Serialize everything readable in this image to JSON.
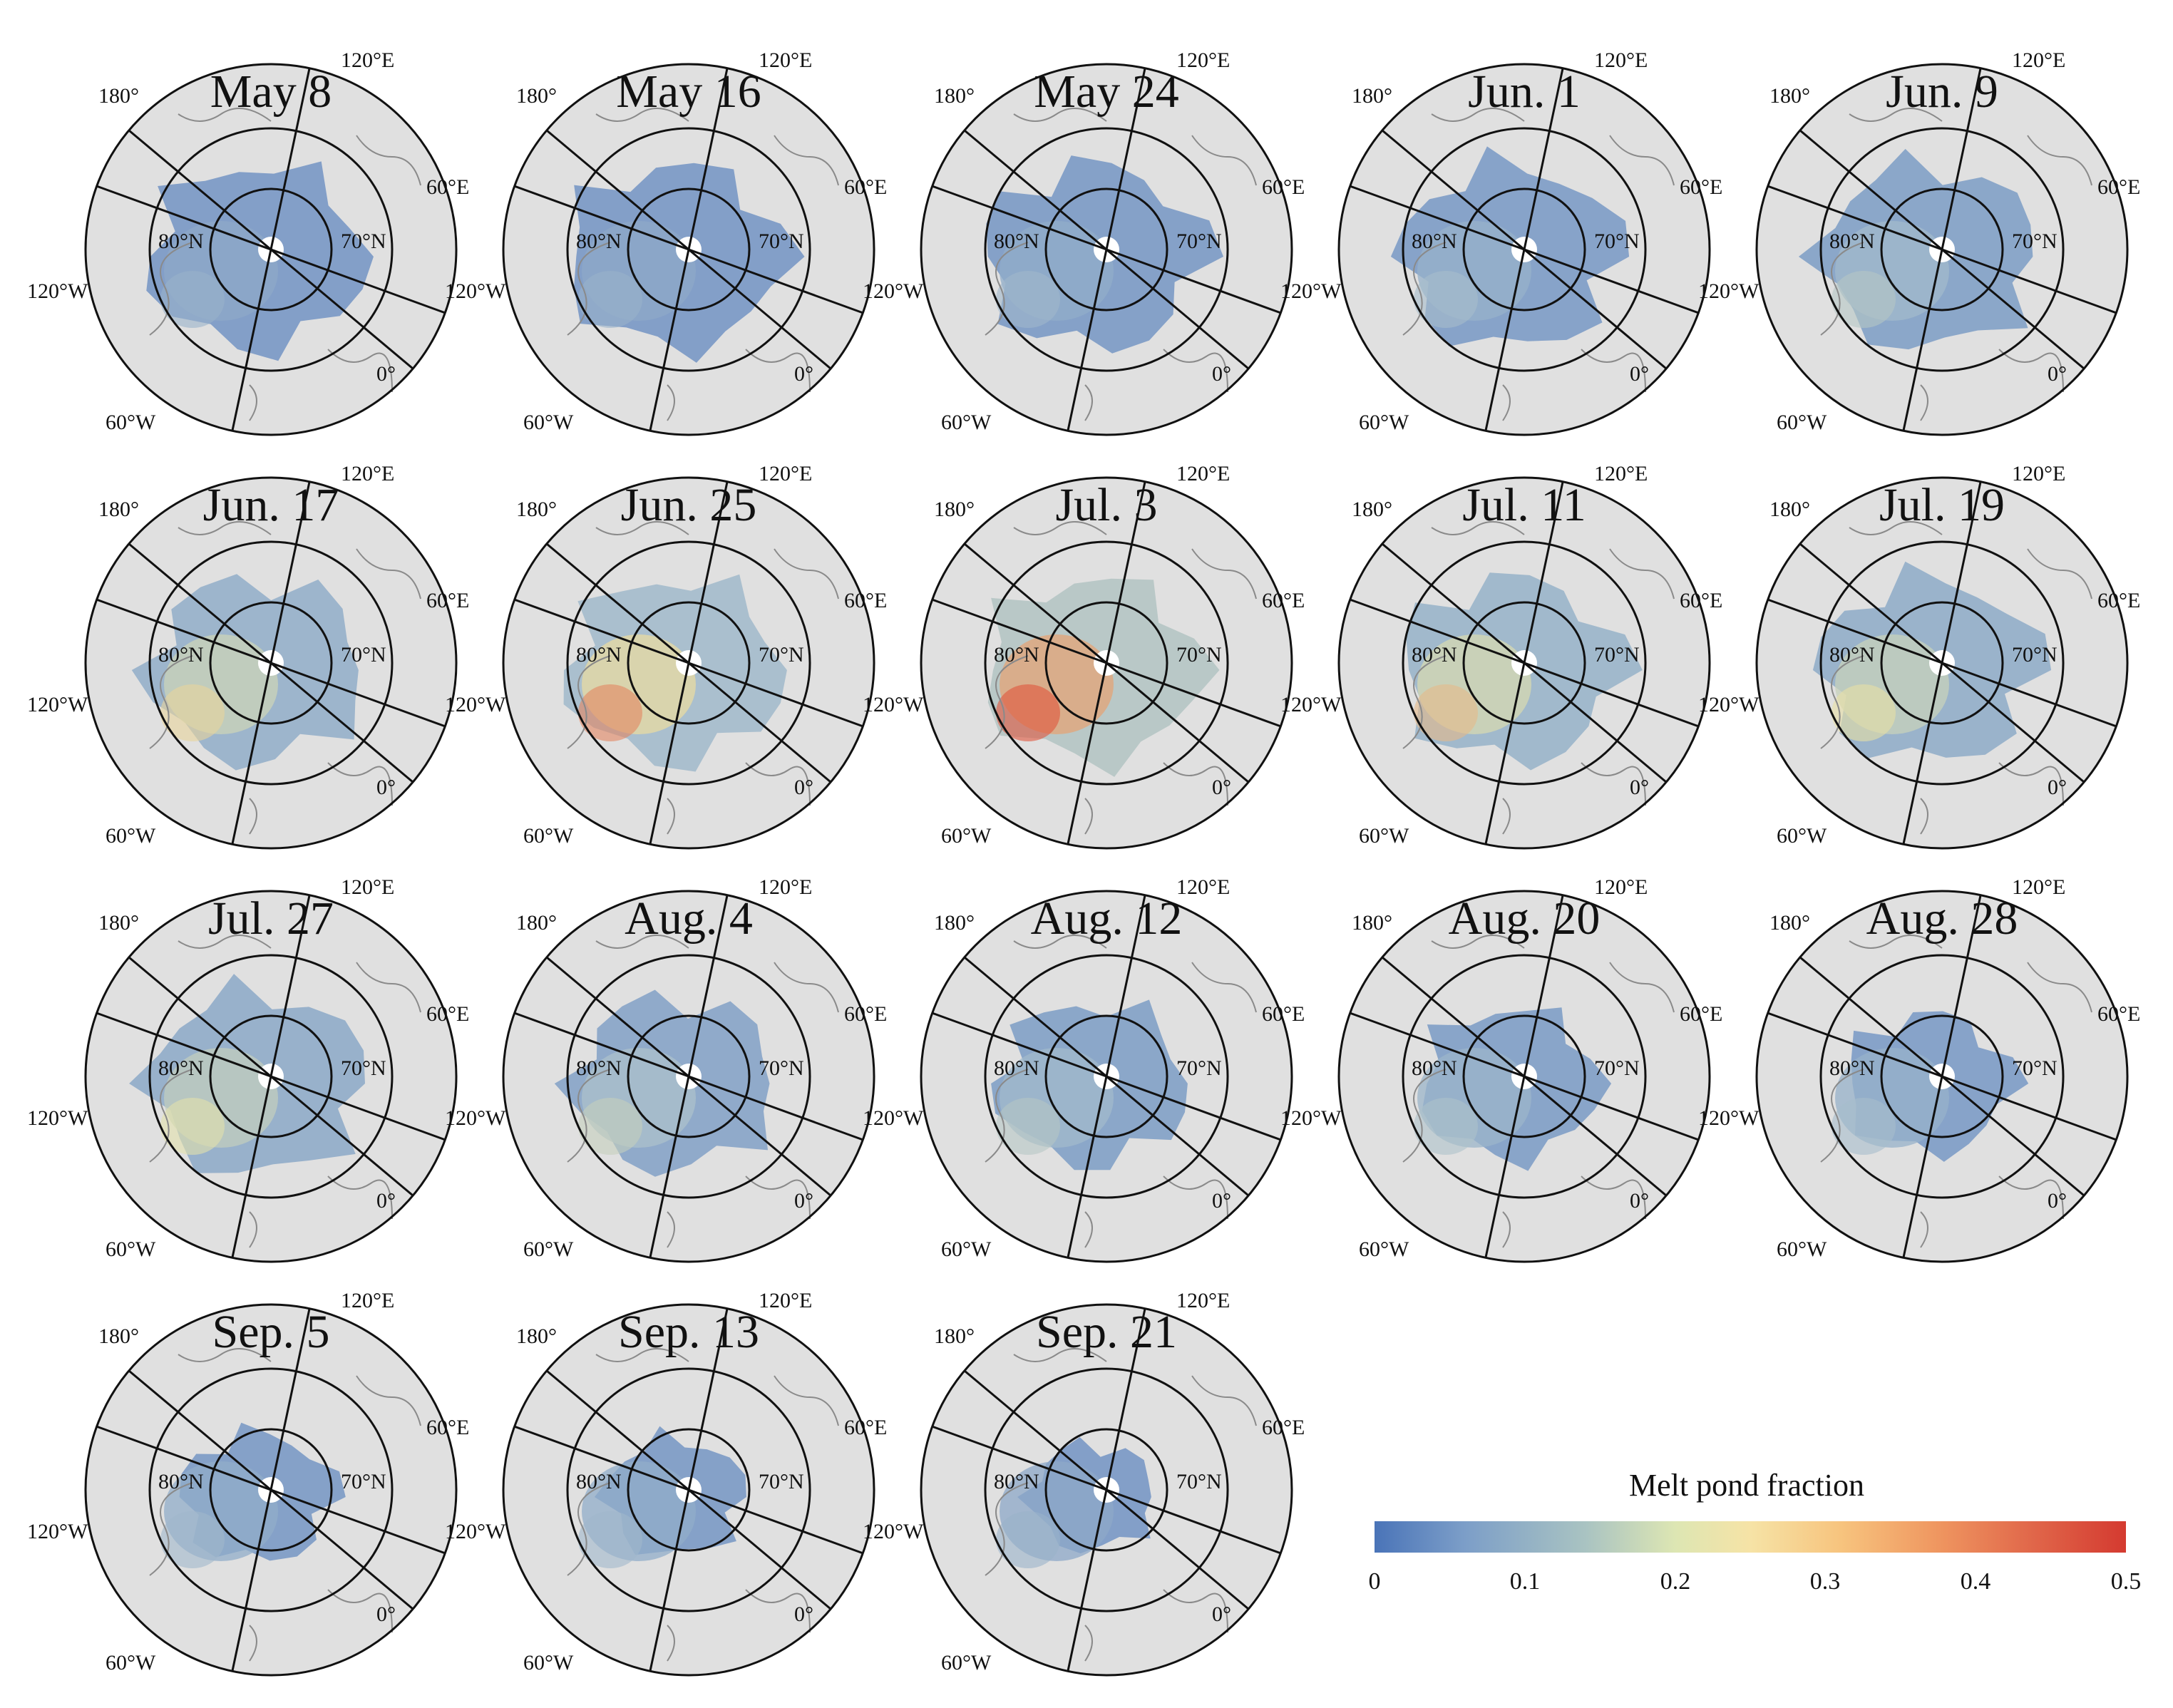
{
  "figure": {
    "panels": [
      {
        "title": "May 8",
        "pond_level": 0.06
      },
      {
        "title": "May 16",
        "pond_level": 0.06
      },
      {
        "title": "May 24",
        "pond_level": 0.07
      },
      {
        "title": "Jun. 1",
        "pond_level": 0.08
      },
      {
        "title": "Jun. 9",
        "pond_level": 0.1
      },
      {
        "title": "Jun. 17",
        "pond_level": 0.18
      },
      {
        "title": "Jun. 25",
        "pond_level": 0.24
      },
      {
        "title": "Jul. 3",
        "pond_level": 0.3
      },
      {
        "title": "Jul. 11",
        "pond_level": 0.2
      },
      {
        "title": "Jul. 19",
        "pond_level": 0.17
      },
      {
        "title": "Jul. 27",
        "pond_level": 0.16
      },
      {
        "title": "Aug. 4",
        "pond_level": 0.12
      },
      {
        "title": "Aug. 12",
        "pond_level": 0.1
      },
      {
        "title": "Aug. 20",
        "pond_level": 0.09
      },
      {
        "title": "Aug. 28",
        "pond_level": 0.08
      },
      {
        "title": "Sep. 5",
        "pond_level": 0.07
      },
      {
        "title": "Sep. 13",
        "pond_level": 0.07
      },
      {
        "title": "Sep. 21",
        "pond_level": 0.06
      }
    ],
    "graticule_labels": {
      "lon_120E": "120°E",
      "lon_180": "180°",
      "lon_60E": "60°E",
      "lat_80N": "80°N",
      "lat_70N": "70°N",
      "lon_120W": "120°W",
      "lon_0": "0°",
      "lon_60W": "60°W"
    }
  },
  "legend": {
    "title": "Melt pond fraction",
    "ticks": [
      "0",
      "0.1",
      "0.2",
      "0.3",
      "0.4",
      "0.5"
    ],
    "range": [
      0,
      0.5
    ],
    "colors": [
      "#4a74b8",
      "#a9c3c2",
      "#f6e3a6",
      "#ef9660",
      "#d43a30"
    ]
  },
  "colors": {
    "land": "#e0e0e0",
    "ice_low": "#6f90c4",
    "ice_mid": "#e8e4a8",
    "ice_high": "#e0553c",
    "grid": "#111111",
    "coast": "#8a8a8a"
  }
}
